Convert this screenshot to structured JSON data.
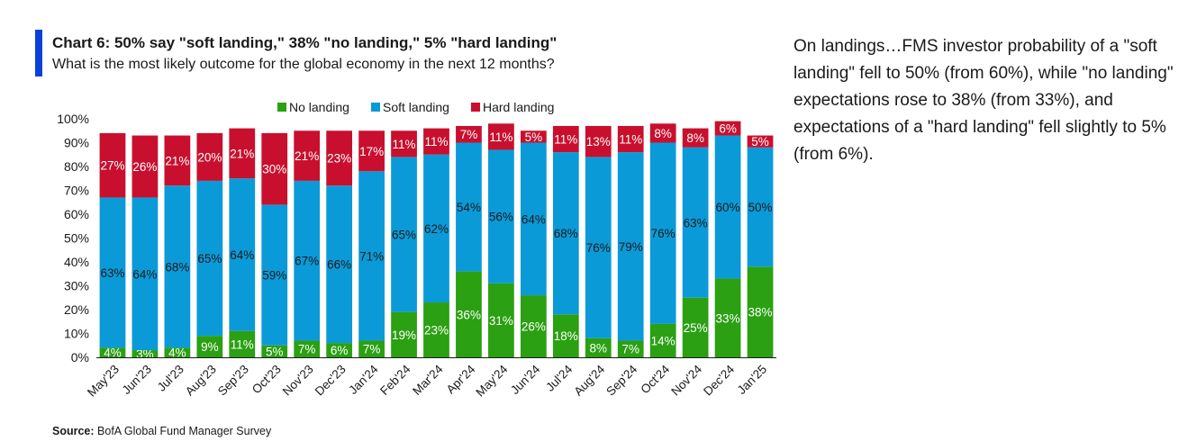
{
  "header": {
    "title": "Chart 6: 50% say \"soft landing,\" 38% \"no landing,\" 5% \"hard landing\"",
    "subtitle": "What is the most likely outcome for the global economy in the next 12 months?"
  },
  "commentary": "On landings…FMS investor probability of a \"soft landing\" fell to 50% (from 60%), while \"no landing\" expectations rose to 38% (from 33%), and expectations of a \"hard landing\" fell slightly to 5% (from 6%).",
  "footer": {
    "source_label": "Source:",
    "source_text": "BofA Global Fund Manager Survey"
  },
  "colors": {
    "no_landing": "#2aa012",
    "soft_landing": "#0b9ad8",
    "hard_landing": "#c8102e"
  },
  "chart_data": {
    "type": "bar",
    "stacked": true,
    "categories": [
      "May'23",
      "Jun'23",
      "Jul'23",
      "Aug'23",
      "Sep'23",
      "Oct'23",
      "Nov'23",
      "Dec'23",
      "Jan'24",
      "Feb'24",
      "Mar'24",
      "Apr'24",
      "May'24",
      "Jun'24",
      "Jul'24",
      "Aug'24",
      "Sep'24",
      "Oct'24",
      "Nov'24",
      "Dec'24",
      "Jan'25"
    ],
    "series": [
      {
        "name": "No landing",
        "values": [
          4,
          3,
          4,
          9,
          11,
          5,
          7,
          6,
          7,
          19,
          23,
          36,
          31,
          26,
          18,
          8,
          7,
          14,
          25,
          33,
          38
        ]
      },
      {
        "name": "Soft landing",
        "values": [
          63,
          64,
          68,
          65,
          64,
          59,
          67,
          66,
          71,
          65,
          62,
          54,
          56,
          64,
          68,
          76,
          79,
          76,
          63,
          60,
          50
        ]
      },
      {
        "name": "Hard landing",
        "values": [
          27,
          26,
          21,
          20,
          21,
          30,
          21,
          23,
          17,
          11,
          11,
          7,
          11,
          5,
          11,
          13,
          11,
          8,
          8,
          6,
          5
        ]
      }
    ],
    "ylim": [
      0,
      100
    ],
    "yticks": [
      "0%",
      "10%",
      "20%",
      "30%",
      "40%",
      "50%",
      "60%",
      "70%",
      "80%",
      "90%",
      "100%"
    ],
    "legend": "top-center",
    "grid": false
  }
}
